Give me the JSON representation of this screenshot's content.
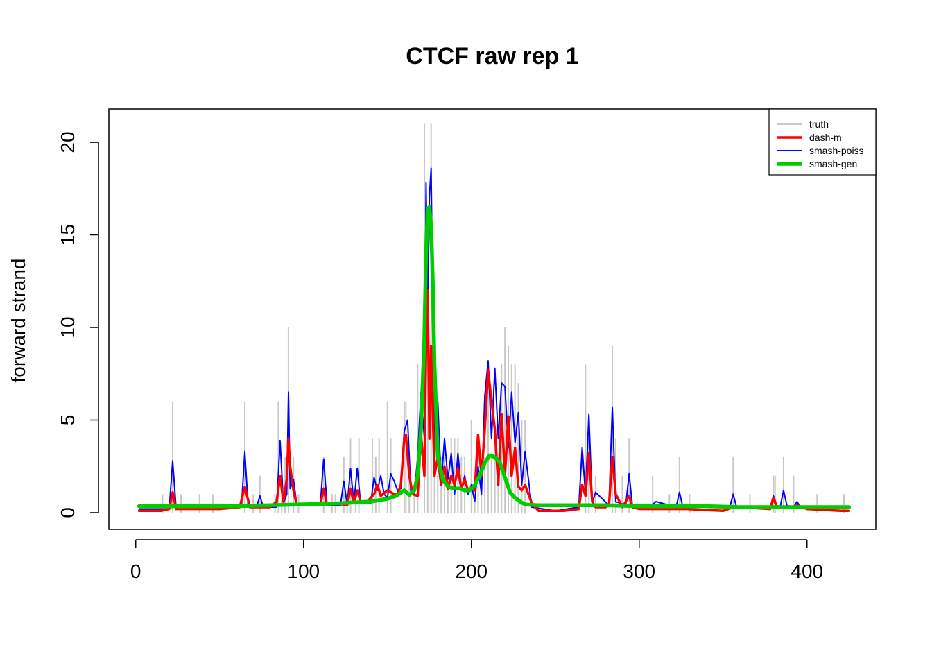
{
  "chart_data": {
    "type": "line",
    "title": "CTCF raw rep 1",
    "xlabel": "",
    "ylabel": "forward strand",
    "xlim": [
      -16,
      441
    ],
    "ylim": [
      -0.9,
      21.8
    ],
    "x_ticks": [
      0,
      100,
      200,
      300,
      400
    ],
    "y_ticks": [
      0,
      5,
      10,
      15,
      20
    ],
    "grid": false,
    "legend_position": "top-right",
    "colors": {
      "truth": "#c8c8c8",
      "dash_m": "#ff0000",
      "smash_poiss": "#0000ff",
      "smash_gen": "#00cc00"
    },
    "series": [
      {
        "name": "truth",
        "style": "vertical-bars",
        "x": [
          16,
          22,
          27,
          38,
          46,
          65,
          70,
          74,
          83,
          85,
          87,
          89,
          91,
          94,
          97,
          112,
          117,
          119,
          124,
          126,
          128,
          131,
          133,
          141,
          143,
          145,
          150,
          152,
          160,
          161,
          163,
          166,
          168,
          172,
          174,
          176,
          178,
          180,
          182,
          184,
          186,
          188,
          190,
          192,
          194,
          196,
          200,
          202,
          204,
          206,
          208,
          210,
          212,
          214,
          216,
          218,
          220,
          222,
          224,
          226,
          228,
          230,
          232,
          268,
          270,
          274,
          284,
          286,
          290,
          294,
          308,
          318,
          324,
          330,
          356,
          366,
          380,
          381,
          386,
          392,
          406,
          422
        ],
        "values": [
          1,
          6,
          1,
          1,
          1,
          6,
          1,
          2,
          1,
          6,
          2,
          3,
          10,
          3,
          1,
          3,
          1,
          1,
          3,
          1,
          4,
          1,
          4,
          4,
          3,
          4,
          6,
          4,
          6,
          6,
          2,
          1,
          8,
          21,
          11,
          21,
          3,
          2,
          3,
          3,
          2,
          4,
          4,
          4,
          3,
          3,
          5,
          1,
          3,
          1,
          3,
          7,
          3,
          4,
          3,
          8,
          10,
          9,
          8,
          8,
          7,
          5,
          5,
          8,
          4,
          2,
          9,
          4,
          2,
          4,
          2,
          1,
          3,
          1,
          3,
          1,
          2,
          2,
          3,
          2,
          1,
          1
        ]
      },
      {
        "name": "smash-poiss",
        "style": "line",
        "x": [
          2,
          20,
          22,
          24,
          40,
          63,
          65,
          67,
          72,
          74,
          76,
          84,
          86,
          88,
          90,
          91,
          92,
          94,
          96,
          110,
          112,
          114,
          122,
          124,
          126,
          128,
          130,
          132,
          134,
          136,
          140,
          142,
          144,
          146,
          148,
          150,
          152,
          154,
          156,
          158,
          160,
          162,
          164,
          166,
          168,
          170,
          172,
          173,
          174,
          175,
          176,
          178,
          180,
          182,
          184,
          186,
          188,
          190,
          192,
          194,
          196,
          198,
          200,
          202,
          204,
          206,
          208,
          210,
          212,
          214,
          216,
          218,
          220,
          222,
          224,
          226,
          228,
          230,
          232,
          236,
          250,
          264,
          266,
          268,
          270,
          272,
          274,
          282,
          284,
          286,
          292,
          294,
          296,
          306,
          310,
          322,
          324,
          326,
          354,
          356,
          358,
          378,
          380,
          382,
          384,
          386,
          388,
          392,
          394,
          396,
          425
        ],
        "values": [
          0.2,
          0.2,
          2.8,
          0.3,
          0.2,
          0.3,
          3.3,
          0.3,
          0.3,
          0.9,
          0.3,
          0.3,
          3.9,
          0.5,
          1.0,
          6.5,
          1.3,
          1.8,
          0.4,
          0.4,
          2.9,
          0.4,
          0.4,
          1.7,
          0.4,
          2.4,
          0.5,
          2.4,
          0.5,
          0.6,
          0.5,
          1.9,
          1.2,
          2.0,
          1.0,
          0.8,
          2.1,
          1.7,
          1.2,
          1.3,
          4.4,
          5.0,
          1.0,
          1.0,
          3.0,
          6.5,
          4.0,
          17.8,
          11.0,
          17.0,
          18.6,
          3.0,
          6.0,
          1.5,
          4.0,
          1.8,
          3.2,
          1.0,
          3.2,
          1.2,
          2.0,
          1.0,
          1.5,
          0.6,
          2.5,
          1.0,
          6.3,
          8.2,
          4.0,
          7.8,
          4.0,
          7.0,
          6.8,
          3.5,
          6.5,
          3.8,
          5.4,
          1.5,
          3.3,
          0.3,
          0.1,
          0.3,
          3.5,
          1.0,
          5.3,
          0.5,
          1.1,
          0.4,
          5.7,
          0.6,
          0.4,
          2.1,
          0.3,
          0.3,
          0.6,
          0.3,
          1.1,
          0.3,
          0.3,
          1.0,
          0.3,
          0.3,
          0.9,
          0.4,
          0.3,
          1.2,
          0.4,
          0.3,
          0.6,
          0.3,
          0.3
        ]
      },
      {
        "name": "dash-m",
        "style": "line",
        "x": [
          2,
          15,
          20,
          22,
          24,
          30,
          50,
          62,
          65,
          68,
          75,
          80,
          84,
          86,
          88,
          90,
          91,
          92,
          94,
          96,
          100,
          110,
          112,
          114,
          120,
          126,
          128,
          130,
          132,
          134,
          138,
          142,
          144,
          146,
          150,
          154,
          156,
          158,
          160,
          161,
          163,
          165,
          168,
          170,
          172,
          173,
          174,
          175,
          176,
          178,
          180,
          182,
          184,
          186,
          188,
          190,
          192,
          194,
          196,
          198,
          200,
          202,
          204,
          206,
          208,
          210,
          212,
          214,
          216,
          218,
          220,
          222,
          224,
          226,
          228,
          230,
          232,
          236,
          240,
          255,
          264,
          266,
          268,
          270,
          272,
          274,
          280,
          282,
          284,
          286,
          290,
          294,
          296,
          300,
          320,
          324,
          328,
          350,
          356,
          360,
          378,
          380,
          382,
          386,
          388,
          392,
          394,
          400,
          420,
          425
        ],
        "values": [
          0.1,
          0.1,
          0.2,
          1.1,
          0.2,
          0.2,
          0.2,
          0.3,
          1.4,
          0.3,
          0.3,
          0.3,
          0.6,
          2.0,
          0.6,
          1.8,
          4.0,
          2.5,
          1.2,
          0.4,
          0.4,
          0.4,
          1.3,
          0.4,
          0.5,
          0.4,
          1.3,
          0.5,
          1.2,
          0.6,
          0.6,
          1.0,
          1.5,
          0.9,
          1.2,
          1.0,
          1.0,
          1.5,
          4.0,
          4.2,
          2.0,
          1.0,
          0.9,
          4.2,
          2.0,
          9.0,
          12.0,
          4.0,
          9.0,
          2.0,
          3.0,
          1.5,
          2.5,
          1.3,
          2.0,
          1.5,
          2.4,
          1.3,
          1.8,
          1.2,
          1.3,
          1.2,
          4.2,
          2.0,
          4.5,
          7.7,
          6.0,
          4.5,
          1.5,
          5.3,
          2.0,
          5.2,
          2.0,
          3.5,
          1.4,
          1.2,
          1.5,
          0.5,
          0.1,
          0.1,
          0.2,
          1.5,
          0.9,
          3.2,
          0.6,
          0.3,
          0.3,
          0.4,
          3.0,
          1.0,
          0.3,
          0.9,
          0.3,
          0.2,
          0.2,
          0.2,
          0.2,
          0.1,
          0.3,
          0.3,
          0.2,
          0.8,
          0.3,
          0.3,
          0.3,
          0.3,
          0.4,
          0.2,
          0.1,
          0.1
        ]
      },
      {
        "name": "smash-gen",
        "style": "line",
        "x": [
          2,
          20,
          40,
          60,
          80,
          100,
          120,
          140,
          150,
          155,
          160,
          163,
          166,
          168,
          170,
          172,
          173,
          174,
          175,
          176,
          177,
          178,
          180,
          183,
          186,
          190,
          193,
          196,
          199,
          202,
          205,
          208,
          211,
          214,
          217,
          220,
          223,
          226,
          229,
          232,
          236,
          240,
          260,
          280,
          300,
          320,
          340,
          360,
          380,
          400,
          425
        ],
        "values": [
          0.35,
          0.35,
          0.35,
          0.35,
          0.4,
          0.45,
          0.5,
          0.6,
          0.75,
          0.9,
          1.2,
          0.95,
          1.2,
          2.0,
          4.5,
          9.5,
          14.0,
          16.4,
          16.5,
          15.5,
          12.5,
          8.0,
          3.0,
          1.8,
          1.4,
          1.3,
          1.3,
          1.2,
          1.2,
          1.5,
          2.0,
          2.7,
          3.1,
          3.0,
          2.7,
          1.9,
          1.1,
          0.8,
          0.6,
          0.45,
          0.42,
          0.4,
          0.4,
          0.4,
          0.35,
          0.35,
          0.35,
          0.3,
          0.3,
          0.3,
          0.3
        ]
      }
    ],
    "legend": {
      "entries": [
        "truth",
        "dash-m",
        "smash-poiss",
        "smash-gen"
      ]
    }
  }
}
